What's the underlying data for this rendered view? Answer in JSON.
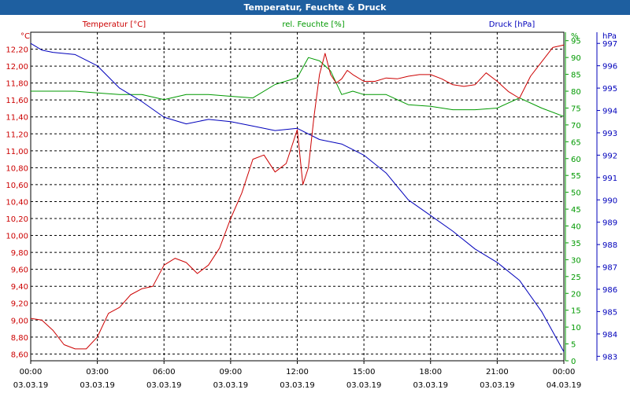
{
  "window": {
    "title": "Temperatur, Feuchte & Druck"
  },
  "chart_data": {
    "type": "line",
    "title": "Temperatur, Feuchte & Druck",
    "colors": {
      "temperature": "#cc0000",
      "humidity": "#009900",
      "pressure": "#0000bb",
      "title_bar": "#1e5fa0"
    },
    "axes": {
      "temperature": {
        "unit": "°C",
        "label": "Temperatur [°C]",
        "range": [
          8.52,
          12.4
        ],
        "ticks": [
          "8,60",
          "8,80",
          "9,00",
          "9,20",
          "9,40",
          "9,60",
          "9,80",
          "10,00",
          "10,20",
          "10,40",
          "10,60",
          "10,80",
          "11,00",
          "11,20",
          "11,40",
          "11,60",
          "11,80",
          "12,00",
          "12,20"
        ],
        "tick_values": [
          8.6,
          8.8,
          9.0,
          9.2,
          9.4,
          9.6,
          9.8,
          10.0,
          10.2,
          10.4,
          10.6,
          10.8,
          11.0,
          11.2,
          11.4,
          11.6,
          11.8,
          12.0,
          12.2
        ]
      },
      "humidity": {
        "unit": "%",
        "label": "rel. Feuchte [%]",
        "range": [
          0,
          97.5
        ],
        "ticks": [
          "0",
          "5",
          "10",
          "15",
          "20",
          "25",
          "30",
          "35",
          "40",
          "45",
          "50",
          "55",
          "60",
          "65",
          "70",
          "75",
          "80",
          "85",
          "90",
          "95"
        ],
        "tick_values": [
          0,
          5,
          10,
          15,
          20,
          25,
          30,
          35,
          40,
          45,
          50,
          55,
          60,
          65,
          70,
          75,
          80,
          85,
          90,
          95
        ]
      },
      "pressure": {
        "unit": "hPa",
        "label": "Druck [hPa]",
        "range": [
          982.8,
          997.5
        ],
        "ticks": [
          "983",
          "984",
          "985",
          "986",
          "987",
          "988",
          "989",
          "990",
          "991",
          "992",
          "993",
          "994",
          "995",
          "996",
          "997"
        ],
        "tick_values": [
          983,
          984,
          985,
          986,
          987,
          988,
          989,
          990,
          991,
          992,
          993,
          994,
          995,
          996,
          997
        ]
      }
    },
    "x": {
      "range_hours": [
        0,
        24
      ],
      "ticks": [
        {
          "time": "00:00",
          "date": "03.03.19"
        },
        {
          "time": "03:00",
          "date": "03.03.19"
        },
        {
          "time": "06:00",
          "date": "03.03.19"
        },
        {
          "time": "09:00",
          "date": "03.03.19"
        },
        {
          "time": "12:00",
          "date": "03.03.19"
        },
        {
          "time": "15:00",
          "date": "03.03.19"
        },
        {
          "time": "18:00",
          "date": "03.03.19"
        },
        {
          "time": "21:00",
          "date": "03.03.19"
        },
        {
          "time": "00:00",
          "date": "04.03.19"
        }
      ]
    },
    "series": [
      {
        "name": "Temperatur [°C]",
        "axis": "temperature",
        "x": [
          0,
          0.5,
          1,
          1.5,
          2,
          2.5,
          3,
          3.5,
          4,
          4.5,
          5,
          5.5,
          6,
          6.5,
          7,
          7.5,
          8,
          8.5,
          9,
          9.5,
          10,
          10.5,
          11,
          11.5,
          12,
          12.25,
          12.5,
          12.75,
          13,
          13.25,
          13.5,
          13.75,
          14,
          14.25,
          14.5,
          15,
          15.5,
          16,
          16.5,
          17,
          17.5,
          18,
          18.5,
          19,
          19.5,
          20,
          20.5,
          21,
          21.5,
          22,
          22.5,
          23,
          23.5,
          24
        ],
        "values": [
          9.02,
          9.0,
          8.88,
          8.71,
          8.66,
          8.66,
          8.8,
          9.08,
          9.15,
          9.3,
          9.37,
          9.4,
          9.65,
          9.73,
          9.68,
          9.55,
          9.65,
          9.85,
          10.2,
          10.5,
          10.9,
          10.95,
          10.75,
          10.85,
          11.25,
          10.6,
          10.8,
          11.4,
          11.9,
          12.15,
          11.9,
          11.8,
          11.85,
          11.95,
          11.9,
          11.82,
          11.82,
          11.86,
          11.85,
          11.88,
          11.9,
          11.9,
          11.85,
          11.78,
          11.76,
          11.78,
          11.92,
          11.82,
          11.7,
          11.62,
          11.88,
          12.05,
          12.22,
          12.25
        ]
      },
      {
        "name": "rel. Feuchte [%]",
        "axis": "humidity",
        "x": [
          0,
          1,
          2,
          3,
          4,
          5,
          6,
          7,
          8,
          9,
          10,
          11,
          12,
          12.5,
          13,
          13.5,
          14,
          14.5,
          15,
          16,
          17,
          18,
          19,
          20,
          21,
          22,
          23,
          24
        ],
        "values": [
          80,
          80,
          80,
          79.5,
          79,
          79,
          77.5,
          79,
          79,
          78.5,
          78,
          82,
          84,
          90,
          89,
          86,
          79,
          80,
          79,
          79,
          76,
          75.5,
          74.5,
          74.5,
          75,
          78,
          75,
          72.5
        ]
      },
      {
        "name": "Druck [hPa]",
        "axis": "pressure",
        "x": [
          0,
          0.5,
          1,
          2,
          3,
          4,
          5,
          6,
          7,
          8,
          9,
          10,
          11,
          12,
          13,
          14,
          15,
          16,
          17,
          18,
          19,
          20,
          21,
          22,
          23,
          24
        ],
        "values": [
          997,
          996.7,
          996.6,
          996.5,
          996,
          995,
          994.4,
          993.7,
          993.4,
          993.6,
          993.5,
          993.3,
          993.1,
          993.2,
          992.7,
          992.5,
          992,
          991.2,
          990,
          989.3,
          988.6,
          987.8,
          987.2,
          986.4,
          985,
          983.2
        ]
      }
    ]
  }
}
